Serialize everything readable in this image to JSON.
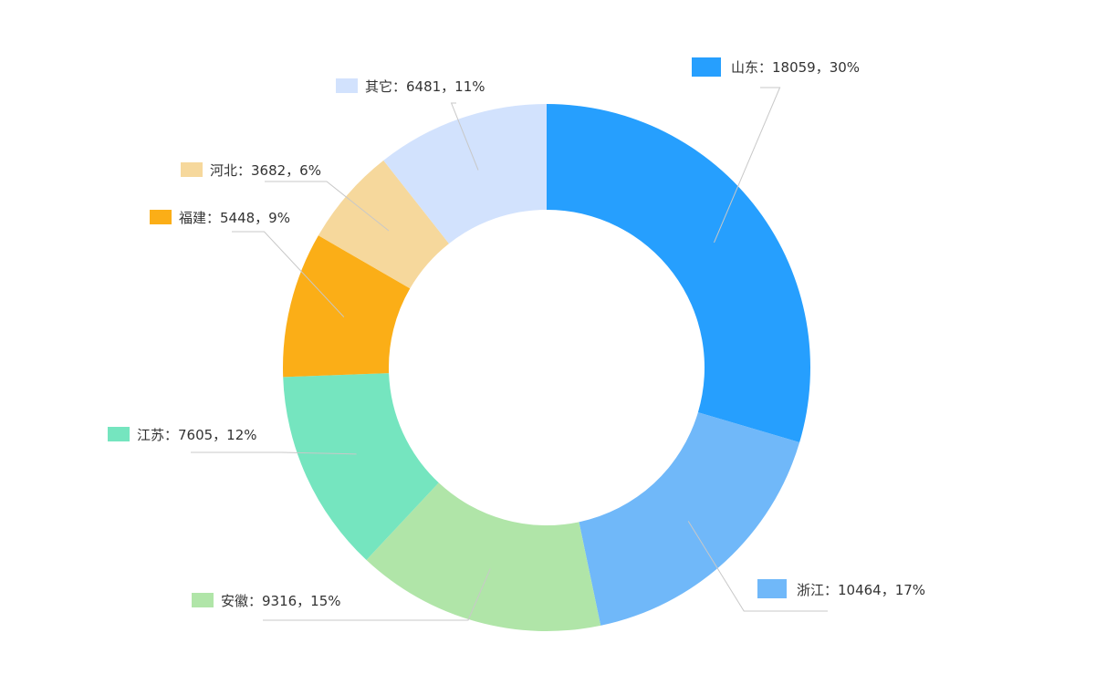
{
  "chart_data": {
    "type": "pie",
    "variant": "donut",
    "title": "",
    "slices": [
      {
        "name": "山东",
        "value": 18059,
        "percent": "30%",
        "label": "山东：18059，30%",
        "color": "#269ffe"
      },
      {
        "name": "浙江",
        "value": 10464,
        "percent": "17%",
        "label": "浙江：10464，17%",
        "color": "#70b8f9"
      },
      {
        "name": "安徽",
        "value": 9316,
        "percent": "15%",
        "label": "安徽：9316，15%",
        "color": "#b0e5a8"
      },
      {
        "name": "江苏",
        "value": 7605,
        "percent": "12%",
        "label": "江苏：7605，12%",
        "color": "#75e5bf"
      },
      {
        "name": "福建",
        "value": 5448,
        "percent": "9%",
        "label": "福建：5448，9%",
        "color": "#fbae17"
      },
      {
        "name": "河北",
        "value": 3682,
        "percent": "6%",
        "label": "河北：3682，6%",
        "color": "#f6d89c"
      },
      {
        "name": "其它",
        "value": 6481,
        "percent": "11%",
        "label": "其它：6481，11%",
        "color": "#d2e2fd"
      }
    ],
    "start_direction": "top",
    "order": "clockwise",
    "labels": "outside-with-leader-lines",
    "legend": "none"
  }
}
